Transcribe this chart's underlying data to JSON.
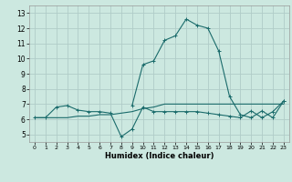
{
  "title": "",
  "xlabel": "Humidex (Indice chaleur)",
  "xlim": [
    -0.5,
    23.5
  ],
  "ylim": [
    4.5,
    13.5
  ],
  "xticks": [
    0,
    1,
    2,
    3,
    4,
    5,
    6,
    7,
    8,
    9,
    10,
    11,
    12,
    13,
    14,
    15,
    16,
    17,
    18,
    19,
    20,
    21,
    22,
    23
  ],
  "yticks": [
    5,
    6,
    7,
    8,
    9,
    10,
    11,
    12,
    13
  ],
  "background_color": "#cce8e0",
  "grid_color": "#b0ccc8",
  "line_color": "#1a6b6b",
  "line1_x": [
    0,
    1,
    2,
    3,
    4,
    5,
    6,
    7,
    8,
    9,
    10,
    11,
    12,
    13,
    14,
    15,
    16,
    17,
    18,
    19,
    20,
    21,
    22,
    23
  ],
  "line1_y": [
    6.1,
    6.1,
    6.8,
    6.9,
    6.6,
    6.5,
    6.5,
    6.4,
    4.85,
    5.35,
    6.8,
    6.5,
    6.5,
    6.5,
    6.5,
    6.5,
    6.4,
    6.3,
    6.2,
    6.1,
    6.55,
    6.1,
    6.5,
    7.2
  ],
  "line2_x": [
    0,
    1,
    2,
    3,
    4,
    5,
    6,
    7,
    8,
    9,
    10,
    11,
    12,
    13,
    14,
    15,
    16,
    17,
    18,
    19,
    20,
    21,
    22,
    23
  ],
  "line2_y": [
    6.1,
    6.1,
    6.1,
    6.1,
    6.2,
    6.2,
    6.3,
    6.3,
    6.4,
    6.5,
    6.7,
    6.8,
    7.0,
    7.0,
    7.0,
    7.0,
    7.0,
    7.0,
    7.0,
    7.0,
    7.0,
    7.0,
    7.0,
    7.0
  ],
  "line3_x": [
    9,
    10,
    11,
    12,
    13,
    14,
    15,
    16,
    17,
    18,
    19,
    20,
    21,
    22,
    23
  ],
  "line3_y": [
    6.9,
    9.6,
    9.85,
    11.2,
    11.5,
    12.6,
    12.2,
    12.0,
    10.5,
    7.5,
    6.3,
    6.1,
    6.55,
    6.1,
    7.2
  ]
}
